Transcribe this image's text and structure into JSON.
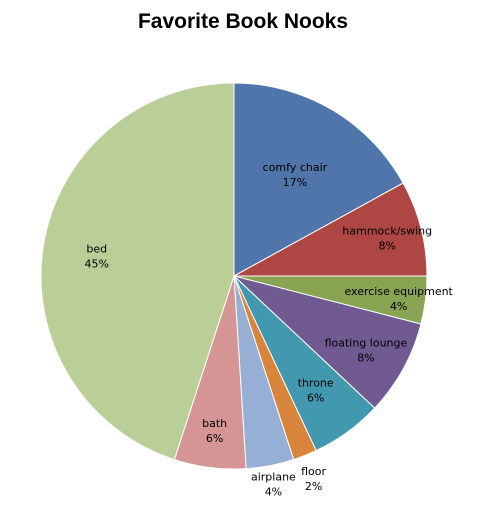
{
  "chart_data": {
    "type": "pie",
    "title": "Favorite Book Nooks",
    "start_angle_deg": 0,
    "direction": "clockwise",
    "slices": [
      {
        "label": "comfy chair",
        "value": 17,
        "value_label": "17%",
        "color": "#4F75AB"
      },
      {
        "label": "hammock/swing",
        "value": 8,
        "value_label": "8%",
        "color": "#AE4643"
      },
      {
        "label": "exercise equipment",
        "value": 4,
        "value_label": "4%",
        "color": "#88A452"
      },
      {
        "label": "floating lounge",
        "value": 8,
        "value_label": "8%",
        "color": "#705A91"
      },
      {
        "label": "throne",
        "value": 6,
        "value_label": "6%",
        "color": "#4298AF"
      },
      {
        "label": "floor",
        "value": 2,
        "value_label": "2%",
        "color": "#D8843A"
      },
      {
        "label": "airplane",
        "value": 4,
        "value_label": "4%",
        "color": "#98AFD5"
      },
      {
        "label": "bath",
        "value": 6,
        "value_label": "6%",
        "color": "#D59595"
      },
      {
        "label": "bed",
        "value": 45,
        "value_label": "45%",
        "color": "#BACE98"
      }
    ]
  }
}
